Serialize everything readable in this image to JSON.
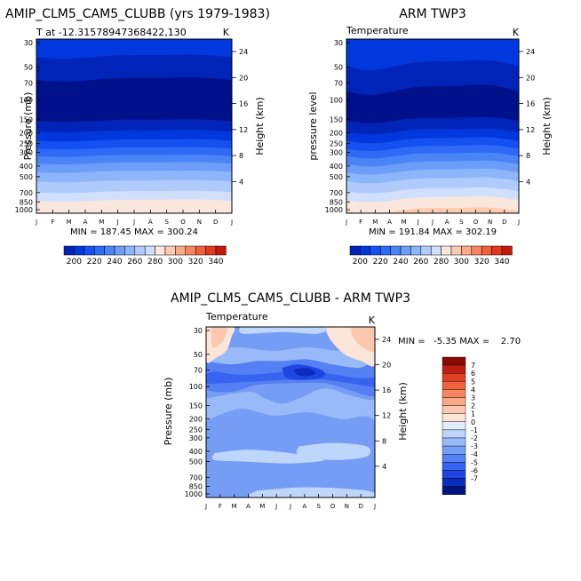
{
  "months": [
    "J",
    "F",
    "M",
    "A",
    "M",
    "J",
    "J",
    "A",
    "S",
    "O",
    "N",
    "D",
    "J"
  ],
  "pressure_ticks": [
    "30",
    "50",
    "70",
    "100",
    "150",
    "200",
    "250",
    "300",
    "400",
    "500",
    "700",
    "850",
    "1000"
  ],
  "height_ticks": [
    "24",
    "20",
    "16",
    "12",
    "8",
    "4"
  ],
  "colors": {
    "abs_palette": [
      "#000f8a",
      "#0024b8",
      "#0038de",
      "#1550f0",
      "#2e6af5",
      "#4a84f7",
      "#6b9df9",
      "#8db6fa",
      "#aecbfb",
      "#cfdffc",
      "#f9e7de",
      "#fccab0",
      "#fbaa88",
      "#f88663",
      "#f25f3c",
      "#e2381e",
      "#c41a0e",
      "#900606"
    ],
    "diff_palette": [
      "#001580",
      "#0a2cbf",
      "#1f45e3",
      "#3862f0",
      "#5580f3",
      "#769df6",
      "#98baf8",
      "#bed6fb",
      "#e3ecfd",
      "#fbe4d8",
      "#fbc7ae",
      "#f9a886",
      "#f7855f",
      "#f2633d",
      "#e04021",
      "#bd1f10",
      "#8a0a0a"
    ]
  },
  "chart_data": [
    {
      "type": "heatmap",
      "title": "AMIP_CLM5_CAM5_CLUBB (yrs 1979-1983)",
      "subtitle_left": "T at -12.31578947368422,130",
      "subtitle_right": "K",
      "ylabel": "Pressure (mb)",
      "y2label": "Height (km)",
      "stats": "MIN = 187.45 MAX = 300.24",
      "min": 187.45,
      "max": 300.24,
      "x": [
        "J",
        "F",
        "M",
        "A",
        "M",
        "J",
        "J",
        "A",
        "S",
        "O",
        "N",
        "D",
        "J"
      ],
      "profile_pressure_mb": [
        30,
        50,
        70,
        100,
        150,
        200,
        250,
        300,
        400,
        500,
        700,
        850,
        1000
      ],
      "profile_temperature_K": [
        215,
        206,
        198,
        196,
        199,
        212,
        224,
        236,
        254,
        266,
        281,
        292,
        299
      ]
    },
    {
      "type": "heatmap",
      "title": "ARM TWP3",
      "subtitle_left": "Temperature",
      "subtitle_right": "K",
      "ylabel": "pressure level",
      "y2label": "Height (km)",
      "stats": "MIN = 191.84 MAX = 302.19",
      "min": 191.84,
      "max": 302.19,
      "x": [
        "J",
        "F",
        "M",
        "A",
        "M",
        "J",
        "J",
        "A",
        "S",
        "O",
        "N",
        "D",
        "J"
      ],
      "profile_pressure_mb": [
        30,
        50,
        70,
        100,
        150,
        200,
        250,
        300,
        400,
        500,
        700,
        850,
        1000
      ],
      "profile_temperature_K": [
        217,
        209,
        201,
        198,
        200,
        212,
        225,
        237,
        254,
        267,
        283,
        294,
        300
      ]
    },
    {
      "type": "heatmap",
      "title": "AMIP_CLM5_CAM5_CLUBB - ARM TWP3",
      "subtitle_left": "Temperature",
      "subtitle_right": "K",
      "ylabel": "Pressure (mb)",
      "y2label": "Height (km)",
      "stats": "MIN =   -5.35 MAX =    2.70",
      "min": -5.35,
      "max": 2.7,
      "x": [
        "J",
        "F",
        "M",
        "A",
        "M",
        "J",
        "J",
        "A",
        "S",
        "O",
        "N",
        "D",
        "J"
      ]
    }
  ],
  "colorbar_abs": {
    "labels": [
      "200",
      "220",
      "240",
      "260",
      "280",
      "300",
      "320",
      "340"
    ]
  },
  "colorbar_diff": {
    "labels": [
      "7",
      "6",
      "5",
      "4",
      "3",
      "2",
      "1",
      "0",
      "-1",
      "-2",
      "-3",
      "-4",
      "-5",
      "-6",
      "-7"
    ]
  }
}
